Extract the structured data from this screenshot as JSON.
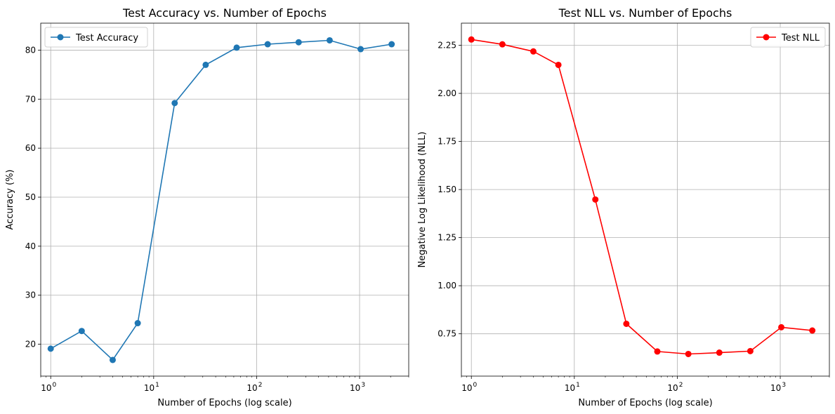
{
  "chart_data": [
    {
      "type": "line",
      "title": "Test Accuracy vs. Number of Epochs",
      "xlabel": "Number of Epochs (log scale)",
      "ylabel": "Accuracy (%)",
      "xscale": "log",
      "xlim": [
        0.8,
        3000
      ],
      "ylim": [
        13.5,
        85.5
      ],
      "xticks": [
        1,
        10,
        100,
        1000
      ],
      "xtick_labels": [
        [
          "10",
          "0"
        ],
        [
          "10",
          "1"
        ],
        [
          "10",
          "2"
        ],
        [
          "10",
          "3"
        ]
      ],
      "yticks": [
        20,
        30,
        40,
        50,
        60,
        70,
        80
      ],
      "ytick_labels": [
        "20",
        "30",
        "40",
        "50",
        "60",
        "70",
        "80"
      ],
      "grid": true,
      "legend": "upper left",
      "series": [
        {
          "name": "Test Accuracy",
          "color": "#1f77b4",
          "marker": "circle",
          "x": [
            1,
            2,
            4,
            7,
            16,
            32,
            64,
            128,
            256,
            512,
            1024,
            2048
          ],
          "y": [
            19.1,
            22.7,
            16.8,
            24.3,
            69.2,
            77.0,
            80.5,
            81.2,
            81.6,
            82.0,
            80.2,
            81.2
          ]
        }
      ]
    },
    {
      "type": "line",
      "title": "Test NLL vs. Number of Epochs",
      "xlabel": "Number of Epochs (log scale)",
      "ylabel": "Negative Log Likelihood (NLL)",
      "xscale": "log",
      "xlim": [
        0.8,
        3000
      ],
      "ylim": [
        0.53,
        2.365
      ],
      "xticks": [
        1,
        10,
        100,
        1000
      ],
      "xtick_labels": [
        [
          "10",
          "0"
        ],
        [
          "10",
          "1"
        ],
        [
          "10",
          "2"
        ],
        [
          "10",
          "3"
        ]
      ],
      "yticks": [
        0.75,
        1.0,
        1.25,
        1.5,
        1.75,
        2.0,
        2.25
      ],
      "ytick_labels": [
        "0.75",
        "1.00",
        "1.25",
        "1.50",
        "1.75",
        "2.00",
        "2.25"
      ],
      "grid": true,
      "legend": "upper right",
      "series": [
        {
          "name": "Test NLL",
          "color": "#ff0000",
          "marker": "circle",
          "x": [
            1,
            2,
            4,
            7,
            16,
            32,
            64,
            128,
            256,
            512,
            1024,
            2048
          ],
          "y": [
            2.28,
            2.255,
            2.218,
            2.148,
            1.448,
            0.802,
            0.658,
            0.645,
            0.652,
            0.66,
            0.784,
            0.767
          ]
        }
      ]
    }
  ]
}
